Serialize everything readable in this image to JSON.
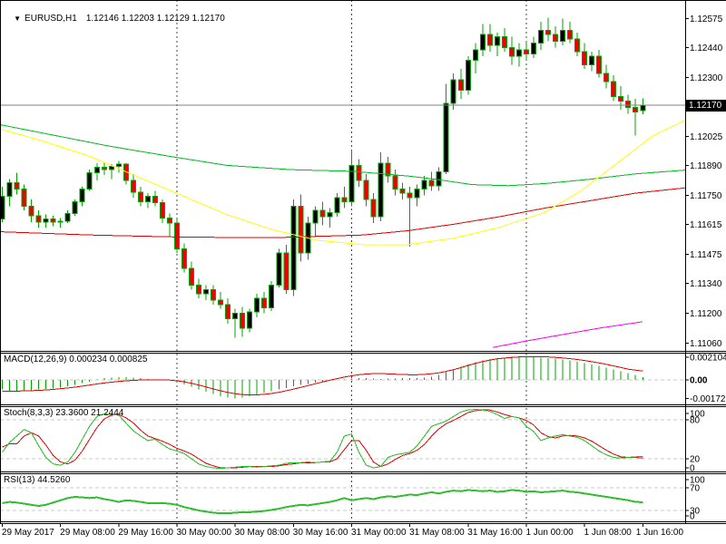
{
  "header": {
    "collapse_icon": "▼",
    "symbol": "EURUSD,H1",
    "ohlc_text": "1.12146 1.12203 1.12129 1.12170"
  },
  "indicators": {
    "macd": {
      "label": "MACD(12,26,9) 0.000234 0.000825",
      "axis_labels": [
        "0.002104",
        "0.00",
        "-0.001721"
      ]
    },
    "stoch": {
      "label": "Stoch(8,3,3) 23.3600 21.2444",
      "axis_labels": [
        "100",
        "80",
        "20",
        "0"
      ]
    },
    "rsi": {
      "label": "RSI(13) 44.5260",
      "axis_labels": [
        "100",
        "70",
        "30",
        "0"
      ]
    }
  },
  "colors": {
    "background": "#FFFFFF",
    "border": "#000000",
    "bull_fill": "#000000",
    "bear_fill": "#EE0000",
    "candle_outline": "#00A300",
    "ma_green": "#00BB22",
    "ma_yellow": "#FFFF00",
    "ma_red": "#E00000",
    "ma_magenta": "#FF00FF",
    "macd_histogram": "#00A300",
    "signal_red": "#E00000",
    "stoch_k": "#22BB22",
    "stoch_d": "#E00000",
    "rsi_line": "#2FBF2F",
    "price_line": "#808080",
    "level_dash": "#C8C8C8",
    "day_separator": "#444444",
    "tag_bg": "#000000",
    "tag_text": "#FFFFFF"
  },
  "chart_data": {
    "type": "candlestick",
    "symbol": "EURUSD",
    "timeframe": "H1",
    "current_bar": {
      "open": 1.12146,
      "high": 1.12203,
      "low": 1.12129,
      "close": 1.1217
    },
    "current_price": 1.1217,
    "price_axis": {
      "labels": [
        "1.12575",
        "1.12440",
        "1.12300",
        "1.12025",
        "1.11890",
        "1.11750",
        "1.11615",
        "1.11475",
        "1.11340",
        "1.11200",
        "1.11060"
      ],
      "current": "1.12170",
      "top_price": 1.12575,
      "bottom_price": 1.1106
    },
    "time_axis": {
      "labels": [
        "29 May 2017",
        "29 May 08:00",
        "29 May 16:00",
        "30 May 00:00",
        "30 May 08:00",
        "30 May 16:00",
        "31 May 00:00",
        "31 May 08:00",
        "31 May 16:00",
        "1 Jun 00:00",
        "1 Jun 08:00",
        "1 Jun 16:00"
      ],
      "bar_indices": [
        0,
        8,
        16,
        24,
        32,
        40,
        48,
        56,
        64,
        72,
        80,
        88
      ]
    },
    "day_separator_indices": [
      24,
      48,
      72
    ],
    "candles": [
      [
        1.1164,
        1.1179,
        1.11625,
        1.11745
      ],
      [
        1.11745,
        1.11825,
        1.117,
        1.1181
      ],
      [
        1.1181,
        1.11855,
        1.11755,
        1.1178
      ],
      [
        1.1178,
        1.118,
        1.1168,
        1.117
      ],
      [
        1.117,
        1.1173,
        1.11625,
        1.11655
      ],
      [
        1.11655,
        1.1168,
        1.116,
        1.11625
      ],
      [
        1.11625,
        1.1166,
        1.116,
        1.1164
      ],
      [
        1.1164,
        1.11655,
        1.11605,
        1.11625
      ],
      [
        1.11625,
        1.11645,
        1.116,
        1.1163
      ],
      [
        1.1163,
        1.1168,
        1.1162,
        1.11665
      ],
      [
        1.11665,
        1.1173,
        1.11655,
        1.1172
      ],
      [
        1.1172,
        1.1179,
        1.117,
        1.1178
      ],
      [
        1.1178,
        1.1187,
        1.1177,
        1.11855
      ],
      [
        1.11855,
        1.119,
        1.1182,
        1.1188
      ],
      [
        1.1188,
        1.11905,
        1.11845,
        1.1187
      ],
      [
        1.1187,
        1.11895,
        1.11825,
        1.11885
      ],
      [
        1.11885,
        1.1191,
        1.11855,
        1.11895
      ],
      [
        1.11895,
        1.119,
        1.118,
        1.1182
      ],
      [
        1.1182,
        1.1185,
        1.1174,
        1.11765
      ],
      [
        1.11765,
        1.1179,
        1.117,
        1.1172
      ],
      [
        1.1172,
        1.1176,
        1.1169,
        1.11745
      ],
      [
        1.11745,
        1.1177,
        1.117,
        1.11715
      ],
      [
        1.11715,
        1.1173,
        1.1162,
        1.11645
      ],
      [
        1.11645,
        1.11665,
        1.1156,
        1.1162
      ],
      [
        1.1162,
        1.1164,
        1.1148,
        1.115
      ],
      [
        1.115,
        1.11525,
        1.1139,
        1.1141
      ],
      [
        1.1141,
        1.1144,
        1.1131,
        1.1133
      ],
      [
        1.1133,
        1.1136,
        1.1127,
        1.1129
      ],
      [
        1.1129,
        1.1133,
        1.1126,
        1.1131
      ],
      [
        1.1131,
        1.1133,
        1.1124,
        1.1126
      ],
      [
        1.1126,
        1.113,
        1.1122,
        1.1124
      ],
      [
        1.1124,
        1.1127,
        1.1115,
        1.11175
      ],
      [
        1.11175,
        1.1122,
        1.11085,
        1.112
      ],
      [
        1.112,
        1.1123,
        1.1109,
        1.1113
      ],
      [
        1.1113,
        1.1122,
        1.1111,
        1.11205
      ],
      [
        1.11205,
        1.1129,
        1.1118,
        1.1127
      ],
      [
        1.1127,
        1.113,
        1.112,
        1.11225
      ],
      [
        1.11225,
        1.1135,
        1.1121,
        1.1133
      ],
      [
        1.1133,
        1.115,
        1.1132,
        1.1148
      ],
      [
        1.1148,
        1.1152,
        1.1129,
        1.1131
      ],
      [
        1.1131,
        1.1173,
        1.1128,
        1.117
      ],
      [
        1.117,
        1.11755,
        1.1144,
        1.1148
      ],
      [
        1.1148,
        1.1165,
        1.1145,
        1.1162
      ],
      [
        1.1162,
        1.117,
        1.1156,
        1.1168
      ],
      [
        1.1168,
        1.1172,
        1.1161,
        1.1165
      ],
      [
        1.1165,
        1.1169,
        1.116,
        1.1167
      ],
      [
        1.1167,
        1.1176,
        1.1165,
        1.1174
      ],
      [
        1.1174,
        1.1179,
        1.1169,
        1.1172
      ],
      [
        1.1172,
        1.1196,
        1.117,
        1.1189
      ],
      [
        1.1189,
        1.1192,
        1.1179,
        1.1182
      ],
      [
        1.1182,
        1.1185,
        1.117,
        1.1173
      ],
      [
        1.1173,
        1.1176,
        1.1162,
        1.1165
      ],
      [
        1.1165,
        1.1195,
        1.1163,
        1.119
      ],
      [
        1.119,
        1.1193,
        1.1181,
        1.1184
      ],
      [
        1.1184,
        1.1187,
        1.1175,
        1.1178
      ],
      [
        1.1178,
        1.1181,
        1.1173,
        1.1176
      ],
      [
        1.1176,
        1.1179,
        1.1151,
        1.1174
      ],
      [
        1.1174,
        1.118,
        1.117,
        1.1178
      ],
      [
        1.1178,
        1.1184,
        1.1175,
        1.1182
      ],
      [
        1.1182,
        1.1186,
        1.1177,
        1.11795
      ],
      [
        1.11795,
        1.1188,
        1.1177,
        1.1186
      ],
      [
        1.1186,
        1.1227,
        1.1185,
        1.1218
      ],
      [
        1.1218,
        1.1232,
        1.1215,
        1.1229
      ],
      [
        1.1229,
        1.1234,
        1.122,
        1.1224
      ],
      [
        1.1224,
        1.124,
        1.1222,
        1.1238
      ],
      [
        1.1238,
        1.1246,
        1.1232,
        1.1243
      ],
      [
        1.1243,
        1.1255,
        1.124,
        1.125
      ],
      [
        1.125,
        1.1255,
        1.1242,
        1.1245
      ],
      [
        1.1245,
        1.1251,
        1.124,
        1.1249
      ],
      [
        1.1249,
        1.1253,
        1.1242,
        1.1244
      ],
      [
        1.1244,
        1.1249,
        1.1236,
        1.124
      ],
      [
        1.124,
        1.1246,
        1.1235,
        1.1243
      ],
      [
        1.1243,
        1.1247,
        1.1238,
        1.1241
      ],
      [
        1.1241,
        1.1249,
        1.1239,
        1.1246
      ],
      [
        1.1246,
        1.1256,
        1.1243,
        1.1252
      ],
      [
        1.1252,
        1.1258,
        1.1247,
        1.125
      ],
      [
        1.125,
        1.1254,
        1.1244,
        1.1247
      ],
      [
        1.1247,
        1.12575,
        1.1245,
        1.1252
      ],
      [
        1.1252,
        1.1256,
        1.1246,
        1.1248
      ],
      [
        1.1248,
        1.1251,
        1.124,
        1.1242
      ],
      [
        1.1242,
        1.1246,
        1.1234,
        1.1236
      ],
      [
        1.1236,
        1.1242,
        1.1233,
        1.124
      ],
      [
        1.124,
        1.1243,
        1.123,
        1.1232
      ],
      [
        1.1232,
        1.1236,
        1.1225,
        1.1228
      ],
      [
        1.1228,
        1.1231,
        1.1219,
        1.1221
      ],
      [
        1.1221,
        1.1226,
        1.1215,
        1.1219
      ],
      [
        1.1219,
        1.1222,
        1.1213,
        1.1216
      ],
      [
        1.1216,
        1.122,
        1.1203,
        1.1214
      ],
      [
        1.12146,
        1.12203,
        1.12129,
        1.1217
      ]
    ],
    "overlays": {
      "ma_green": [
        [
          0,
          1.1208
        ],
        [
          60,
          1.1203
        ],
        [
          120,
          1.1198
        ],
        [
          190,
          1.1193
        ],
        [
          250,
          1.1189
        ],
        [
          320,
          1.1187
        ],
        [
          390,
          1.11862
        ],
        [
          450,
          1.1184
        ],
        [
          480,
          1.11825
        ],
        [
          520,
          1.118
        ],
        [
          560,
          1.11795
        ],
        [
          600,
          1.11805
        ],
        [
          650,
          1.11825
        ],
        [
          700,
          1.1185
        ],
        [
          755,
          1.11868
        ]
      ],
      "ma_yellow": [
        [
          0,
          1.1206
        ],
        [
          50,
          1.12
        ],
        [
          100,
          1.1193
        ],
        [
          150,
          1.1184
        ],
        [
          200,
          1.1175
        ],
        [
          250,
          1.1166
        ],
        [
          300,
          1.1159
        ],
        [
          350,
          1.1154
        ],
        [
          400,
          1.1152
        ],
        [
          450,
          1.1152
        ],
        [
          500,
          1.1155
        ],
        [
          550,
          1.116
        ],
        [
          600,
          1.1167
        ],
        [
          640,
          1.1177
        ],
        [
          680,
          1.119
        ],
        [
          720,
          1.1203
        ],
        [
          755,
          1.121
        ]
      ],
      "ma_red": [
        [
          0,
          1.1158
        ],
        [
          100,
          1.11565
        ],
        [
          200,
          1.11555
        ],
        [
          300,
          1.11552
        ],
        [
          400,
          1.11565
        ],
        [
          450,
          1.11585
        ],
        [
          500,
          1.11615
        ],
        [
          550,
          1.1165
        ],
        [
          600,
          1.1169
        ],
        [
          650,
          1.11725
        ],
        [
          700,
          1.1176
        ],
        [
          755,
          1.11785
        ]
      ],
      "ma_magenta": [
        [
          543,
          1.1104
        ],
        [
          580,
          1.1107
        ],
        [
          620,
          1.111
        ],
        [
          660,
          1.1113
        ],
        [
          708,
          1.1116
        ]
      ]
    },
    "macd": {
      "params": "12,26,9",
      "current_main": 0.000234,
      "current_signal": 0.000825,
      "scale_max": 0.002104,
      "scale_min": -0.001721,
      "histogram": [
        -0.0009,
        -0.001,
        -0.00105,
        -0.001,
        -0.00095,
        -0.0009,
        -0.00085,
        -0.0008,
        -0.0007,
        -0.0006,
        -0.00045,
        -0.0003,
        -0.00015,
        5e-05,
        0.00015,
        0.0002,
        0.00025,
        0.00025,
        0.0002,
        0.00015,
        0.0001,
        5e-05,
        0,
        -5e-05,
        -0.0002,
        -0.0004,
        -0.00065,
        -0.0009,
        -0.0011,
        -0.0013,
        -0.0015,
        -0.00165,
        -0.00172,
        -0.00165,
        -0.0015,
        -0.00135,
        -0.0012,
        -0.00105,
        -0.0009,
        -0.00075,
        -0.0006,
        -0.00048,
        -0.00036,
        -0.00026,
        -0.00016,
        -8e-05,
        0,
        6e-05,
        0.00012,
        0.00015,
        0.00015,
        0.00012,
        0.0001,
        0.00012,
        0.00014,
        0.00015,
        0.00016,
        0.00018,
        0.00022,
        0.0003,
        0.00045,
        0.0007,
        0.00095,
        0.0012,
        0.00145,
        0.00165,
        0.0018,
        0.00192,
        0.002,
        0.00206,
        0.0021,
        0.00212,
        0.00212,
        0.0021,
        0.00207,
        0.00202,
        0.00196,
        0.00188,
        0.00179,
        0.00168,
        0.00156,
        0.00143,
        0.00129,
        0.00114,
        0.00098,
        0.00081,
        0.00063,
        0.00045,
        0.000234
      ],
      "signal": [
        -0.00105,
        -0.00105,
        -0.00104,
        -0.00102,
        -0.001,
        -0.00097,
        -0.00093,
        -0.00088,
        -0.00082,
        -0.00075,
        -0.00067,
        -0.00058,
        -0.00048,
        -0.00038,
        -0.00029,
        -0.00021,
        -0.00014,
        -8e-05,
        -4e-05,
        -1e-05,
        1e-05,
        2e-05,
        1e-05,
        -2e-05,
        -8e-05,
        -0.00018,
        -0.00032,
        -0.00048,
        -0.00066,
        -0.00084,
        -0.00101,
        -0.00116,
        -0.00128,
        -0.00136,
        -0.0014,
        -0.00139,
        -0.00134,
        -0.00126,
        -0.00115,
        -0.00101,
        -0.00086,
        -0.0007,
        -0.00053,
        -0.00036,
        -0.00019,
        -3e-05,
        0.00012,
        0.00026,
        0.00038,
        0.00048,
        0.00055,
        0.00058,
        0.00058,
        0.00056,
        0.00053,
        0.0005,
        0.00048,
        0.00048,
        0.00051,
        0.00057,
        0.00066,
        0.00079,
        0.00095,
        0.00114,
        0.00134,
        0.00153,
        0.0017,
        0.00184,
        0.00195,
        0.00203,
        0.00209,
        0.00213,
        0.00215,
        0.00216,
        0.00215,
        0.00213,
        0.00209,
        0.00204,
        0.00197,
        0.00189,
        0.0018,
        0.00169,
        0.00157,
        0.00144,
        0.0013,
        0.00115,
        0.00099,
        0.00091,
        0.000825
      ]
    },
    "stoch": {
      "params": "8,3,3",
      "current_k": 23.36,
      "current_d": 21.2444,
      "levels": [
        80,
        20
      ],
      "k": [
        30,
        45,
        55,
        65,
        60,
        40,
        22,
        12,
        10,
        15,
        30,
        50,
        70,
        85,
        89,
        88,
        87,
        75,
        63,
        55,
        48,
        50,
        42,
        35,
        32,
        28,
        20,
        12,
        8,
        6,
        5,
        6,
        7,
        8,
        8,
        7,
        8,
        9,
        10,
        13,
        14,
        14,
        15,
        14,
        15,
        16,
        30,
        55,
        58,
        30,
        10,
        6,
        8,
        22,
        26,
        28,
        30,
        40,
        55,
        70,
        74,
        78,
        85,
        92,
        95,
        96,
        95,
        93,
        88,
        82,
        85,
        83,
        70,
        62,
        48,
        52,
        55,
        57,
        55,
        53,
        48,
        40,
        32,
        26,
        22,
        21,
        22,
        23,
        23.4
      ],
      "d": [
        38,
        43,
        43,
        55,
        60,
        55,
        41,
        25,
        15,
        12,
        18,
        32,
        50,
        68,
        81,
        87,
        88,
        83,
        75,
        64,
        55,
        51,
        47,
        42,
        36,
        32,
        27,
        20,
        13,
        9,
        6,
        6,
        6,
        7,
        8,
        8,
        8,
        8,
        9,
        11,
        12,
        14,
        14,
        14,
        15,
        15,
        20,
        34,
        48,
        48,
        33,
        15,
        8,
        12,
        19,
        25,
        28,
        33,
        42,
        55,
        66,
        74,
        79,
        85,
        91,
        94,
        95,
        95,
        92,
        88,
        85,
        83,
        79,
        72,
        60,
        54,
        52,
        55,
        56,
        55,
        52,
        47,
        40,
        33,
        27,
        23,
        22,
        22,
        21.2
      ]
    },
    "rsi": {
      "params": "13",
      "current": 44.526,
      "levels": [
        70,
        30
      ],
      "values": [
        43,
        45,
        44,
        42,
        40,
        38,
        40,
        44,
        48,
        52,
        54,
        53,
        52,
        53,
        50,
        48,
        45,
        48,
        47,
        45,
        43,
        43,
        43,
        42,
        40,
        36,
        33,
        30,
        28,
        26,
        25,
        25,
        26,
        27,
        27,
        28,
        29,
        31,
        33,
        36,
        38,
        40,
        39,
        41,
        43,
        45,
        48,
        52,
        48,
        50,
        52,
        50,
        53,
        55,
        54,
        56,
        58,
        57,
        60,
        62,
        60,
        63,
        65,
        64,
        66,
        65,
        64,
        65,
        63,
        64,
        66,
        65,
        63,
        64,
        62,
        63,
        64,
        65,
        63,
        62,
        60,
        58,
        56,
        54,
        52,
        50,
        48,
        45,
        44.5
      ]
    }
  }
}
